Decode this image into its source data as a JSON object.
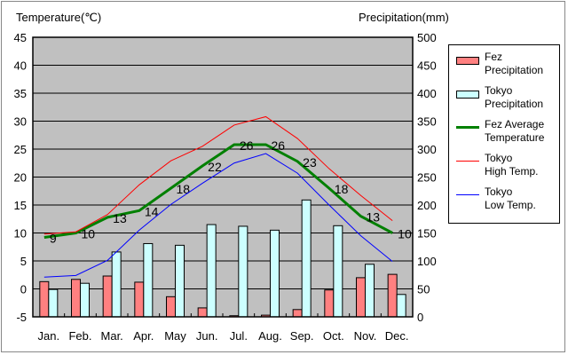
{
  "chart_data": {
    "type": "bar+line",
    "left_axis_label": "Temperature(℃)",
    "right_axis_label": "Precipitation(mm)",
    "categories": [
      "Jan.",
      "Feb.",
      "Mar.",
      "Apr.",
      "May",
      "Jun.",
      "Jul.",
      "Aug.",
      "Sep.",
      "Oct.",
      "Nov.",
      "Dec."
    ],
    "ylim_left": [
      -5,
      45
    ],
    "yticks_left": [
      "-5",
      "0",
      "5",
      "10",
      "15",
      "20",
      "25",
      "30",
      "35",
      "40",
      "45"
    ],
    "ylim_right": [
      0,
      500
    ],
    "yticks_right": [
      "0",
      "50",
      "100",
      "150",
      "200",
      "250",
      "300",
      "350",
      "400",
      "450",
      "500"
    ],
    "grid": true,
    "legend_placement": "right",
    "series": [
      {
        "name": "Fez Precipitation",
        "type": "bar",
        "axis": "right",
        "color": "#ff8080",
        "values": [
          63,
          67,
          73,
          62,
          36,
          16,
          2,
          3,
          13,
          48,
          70,
          76
        ]
      },
      {
        "name": "Tokyo Precipitation",
        "type": "bar",
        "axis": "right",
        "color": "#ccffff",
        "values": [
          49,
          60,
          116,
          131,
          128,
          165,
          162,
          155,
          209,
          163,
          94,
          40
        ]
      },
      {
        "name": "Fez Average Temperature",
        "type": "line",
        "axis": "left",
        "color": "#008000",
        "values": [
          9.2,
          10.0,
          12.8,
          14.0,
          18.0,
          22.0,
          25.8,
          25.8,
          22.8,
          18.0,
          13.0,
          10.0
        ],
        "labels": [
          "9",
          "10",
          "13",
          "14",
          "18",
          "22",
          "26",
          "26",
          "23",
          "18",
          "13",
          "10"
        ]
      },
      {
        "name": "Tokyo High Temp.",
        "type": "line",
        "axis": "left",
        "color": "#ff0000",
        "values": [
          9.8,
          10.2,
          13.3,
          18.6,
          22.9,
          25.5,
          29.3,
          30.8,
          26.9,
          21.5,
          16.7,
          12.2
        ]
      },
      {
        "name": "Tokyo Low Temp.",
        "type": "line",
        "axis": "left",
        "color": "#0000ff",
        "values": [
          2.1,
          2.4,
          5.1,
          10.5,
          15.1,
          18.9,
          22.5,
          24.2,
          20.7,
          15.0,
          9.5,
          4.9
        ]
      }
    ]
  },
  "legend": [
    {
      "label": "Fez\nPrecipitation"
    },
    {
      "label": "Tokyo\nPrecipitation"
    },
    {
      "label": "Fez Average\nTemperature"
    },
    {
      "label": "Tokyo\nHigh Temp."
    },
    {
      "label": "Tokyo\nLow Temp."
    }
  ]
}
